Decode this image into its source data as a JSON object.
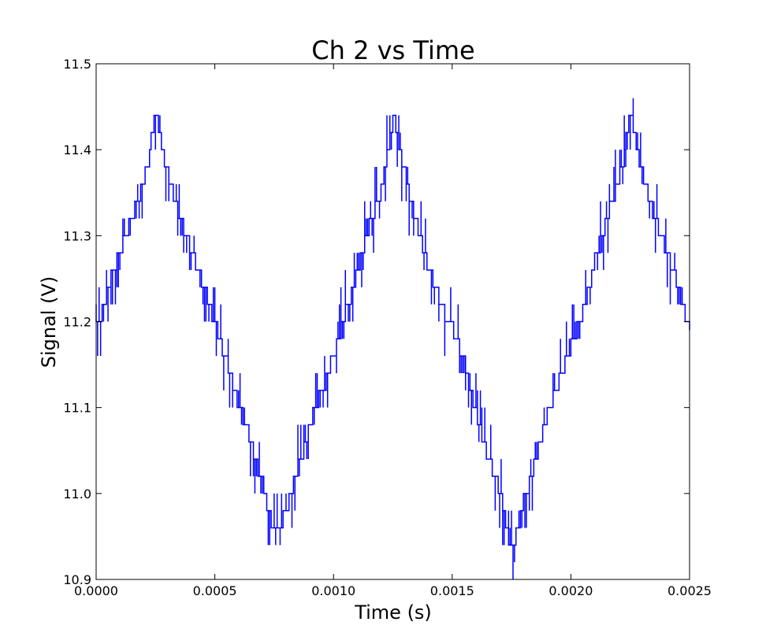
{
  "chart_data": {
    "type": "line",
    "title": "Ch  2 vs Time",
    "xlabel": "Time (s)",
    "ylabel": "Signal (V)",
    "xlim": [
      0.0,
      0.0025
    ],
    "ylim": [
      10.9,
      11.5
    ],
    "x_ticks": [
      0.0,
      0.0005,
      0.001,
      0.0015,
      0.002,
      0.0025
    ],
    "x_tick_labels": [
      "0.0000",
      "0.0005",
      "0.0010",
      "0.0015",
      "0.0020",
      "0.0025"
    ],
    "y_ticks": [
      10.9,
      11.0,
      11.1,
      11.2,
      11.3,
      11.4,
      11.5
    ],
    "y_tick_labels": [
      "10.9",
      "11.0",
      "11.1",
      "11.2",
      "11.3",
      "11.4",
      "11.5"
    ],
    "grid": false,
    "legend": "none",
    "series": [
      {
        "color": "#0000ff",
        "x": [
          0.0,
          5e-05,
          0.0001,
          0.00015,
          0.0002,
          0.00025,
          0.0003,
          0.00035,
          0.0004,
          0.00045,
          0.0005,
          0.00055,
          0.0006,
          0.00065,
          0.0007,
          0.00075,
          0.0008,
          0.00085,
          0.0009,
          0.00095,
          0.001,
          0.00105,
          0.0011,
          0.00115,
          0.0012,
          0.00125,
          0.0013,
          0.00135,
          0.0014,
          0.00145,
          0.0015,
          0.00155,
          0.0016,
          0.00165,
          0.0017,
          0.00175,
          0.0018,
          0.00185,
          0.0019,
          0.00195,
          0.002,
          0.00205,
          0.0021,
          0.00215,
          0.0022,
          0.00225,
          0.0023,
          0.00235,
          0.0024,
          0.00245,
          0.0025
        ],
        "y": [
          11.19,
          11.24,
          11.28,
          11.32,
          11.36,
          11.44,
          11.37,
          11.32,
          11.28,
          11.24,
          11.2,
          11.15,
          11.1,
          11.06,
          11.01,
          10.95,
          10.98,
          11.03,
          11.08,
          11.12,
          11.16,
          11.21,
          11.26,
          11.31,
          11.35,
          11.44,
          11.37,
          11.31,
          11.26,
          11.22,
          11.19,
          11.15,
          11.09,
          11.04,
          11.0,
          10.93,
          10.99,
          11.04,
          11.09,
          11.13,
          11.17,
          11.21,
          11.27,
          11.32,
          11.36,
          11.44,
          11.37,
          11.32,
          11.28,
          11.24,
          11.19
        ]
      }
    ]
  }
}
